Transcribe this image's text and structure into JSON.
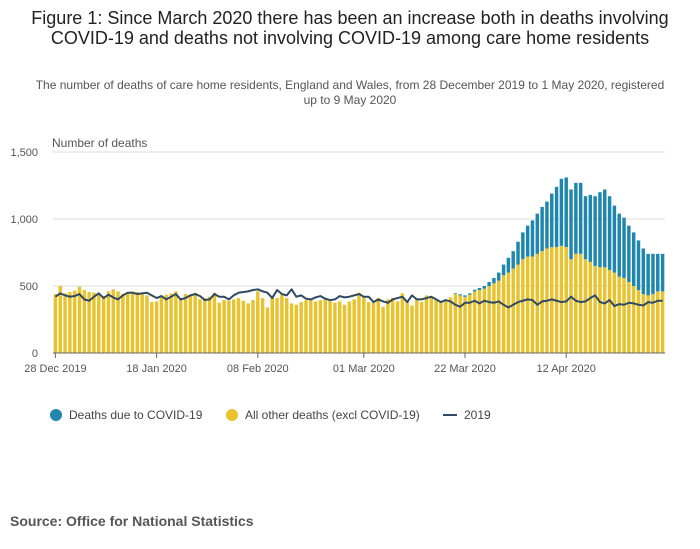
{
  "title": "Figure 1: Since March 2020 there has been an increase both in deaths involving COVID-19 and deaths not involving COVID-19 among care home residents",
  "subtitle": "The number of deaths of care home residents, England and Wales, from 28 December 2019 to 1 May 2020, registered up to 9 May 2020",
  "source": "Source: Office for National Statistics",
  "colors": {
    "covid": "#1f87ae",
    "other": "#e8c32d",
    "line2019": "#2f4a62"
  },
  "chart_data": {
    "type": "bar",
    "stacked": true,
    "ylabel": "Number of deaths",
    "ylim": [
      0,
      1500
    ],
    "yticks": [
      0,
      500,
      1000,
      1500
    ],
    "ytick_labels": [
      "0",
      "500",
      "1,000",
      "1,500"
    ],
    "x_start": "2019-12-28",
    "x_end": "2020-05-01",
    "xticks": [
      "2019-12-28",
      "2020-01-18",
      "2020-02-08",
      "2020-03-01",
      "2020-03-22",
      "2020-04-12"
    ],
    "xtick_labels": [
      "28 Dec 2019",
      "18 Jan 2020",
      "08 Feb 2020",
      "01 Mar 2020",
      "22 Mar 2020",
      "12 Apr 2020"
    ],
    "legend_position": "bottom",
    "series": [
      {
        "name": "Deaths due to COVID-19",
        "type": "bar",
        "values": [
          0,
          0,
          0,
          0,
          0,
          0,
          0,
          0,
          0,
          0,
          0,
          0,
          0,
          0,
          0,
          0,
          0,
          0,
          0,
          0,
          0,
          0,
          0,
          0,
          0,
          0,
          0,
          0,
          0,
          0,
          0,
          0,
          0,
          0,
          0,
          0,
          0,
          0,
          0,
          0,
          0,
          0,
          0,
          0,
          0,
          0,
          0,
          0,
          0,
          0,
          0,
          0,
          0,
          0,
          0,
          0,
          0,
          0,
          0,
          0,
          0,
          0,
          0,
          0,
          0,
          0,
          0,
          0,
          0,
          0,
          0,
          0,
          0,
          0,
          0,
          0,
          0,
          0,
          0,
          0,
          0,
          0,
          0,
          5,
          8,
          10,
          10,
          12,
          15,
          20,
          30,
          40,
          60,
          80,
          110,
          130,
          170,
          200,
          230,
          270,
          300,
          330,
          350,
          400,
          450,
          500,
          520,
          520,
          530,
          530,
          470,
          500,
          520,
          560,
          580,
          550,
          500,
          470,
          450,
          420,
          400,
          370,
          340,
          310,
          300,
          280,
          280
        ]
      },
      {
        "name": "All other deaths (excl COVID-19)",
        "type": "bar",
        "values": [
          440,
          500,
          445,
          455,
          465,
          495,
          470,
          455,
          450,
          445,
          425,
          460,
          475,
          460,
          440,
          450,
          460,
          455,
          445,
          430,
          380,
          385,
          420,
          435,
          445,
          460,
          410,
          440,
          435,
          450,
          400,
          410,
          420,
          450,
          375,
          395,
          390,
          400,
          410,
          390,
          370,
          395,
          460,
          410,
          340,
          420,
          410,
          435,
          410,
          370,
          360,
          380,
          395,
          405,
          385,
          395,
          400,
          395,
          375,
          385,
          360,
          385,
          400,
          450,
          415,
          380,
          375,
          410,
          345,
          400,
          410,
          385,
          445,
          385,
          355,
          400,
          380,
          430,
          410,
          395,
          375,
          390,
          415,
          440,
          430,
          420,
          435,
          460,
          470,
          480,
          500,
          520,
          540,
          580,
          600,
          630,
          660,
          700,
          720,
          720,
          740,
          760,
          780,
          790,
          790,
          800,
          790,
          700,
          740,
          740,
          700,
          680,
          650,
          640,
          640,
          620,
          600,
          570,
          560,
          530,
          500,
          470,
          440,
          430,
          440,
          460,
          460
        ]
      },
      {
        "name": "2019",
        "type": "line",
        "values": [
          420,
          445,
          430,
          420,
          425,
          440,
          400,
          390,
          420,
          445,
          410,
          435,
          415,
          400,
          430,
          450,
          450,
          440,
          445,
          450,
          430,
          410,
          425,
          400,
          420,
          440,
          400,
          410,
          430,
          440,
          425,
          395,
          400,
          440,
          420,
          420,
          400,
          430,
          450,
          455,
          460,
          470,
          475,
          460,
          450,
          410,
          470,
          440,
          430,
          475,
          420,
          430,
          405,
          400,
          415,
          425,
          405,
          395,
          400,
          425,
          415,
          420,
          430,
          440,
          420,
          420,
          380,
          400,
          385,
          375,
          400,
          410,
          420,
          380,
          430,
          400,
          400,
          410,
          420,
          400,
          380,
          395,
          385,
          360,
          345,
          375,
          375,
          390,
          370,
          390,
          380,
          375,
          385,
          360,
          340,
          360,
          380,
          390,
          400,
          395,
          360,
          385,
          390,
          400,
          390,
          380,
          385,
          420,
          390,
          380,
          385,
          410,
          430,
          380,
          370,
          395,
          350,
          365,
          360,
          375,
          370,
          360,
          355,
          380,
          375,
          390,
          390
        ]
      }
    ]
  }
}
